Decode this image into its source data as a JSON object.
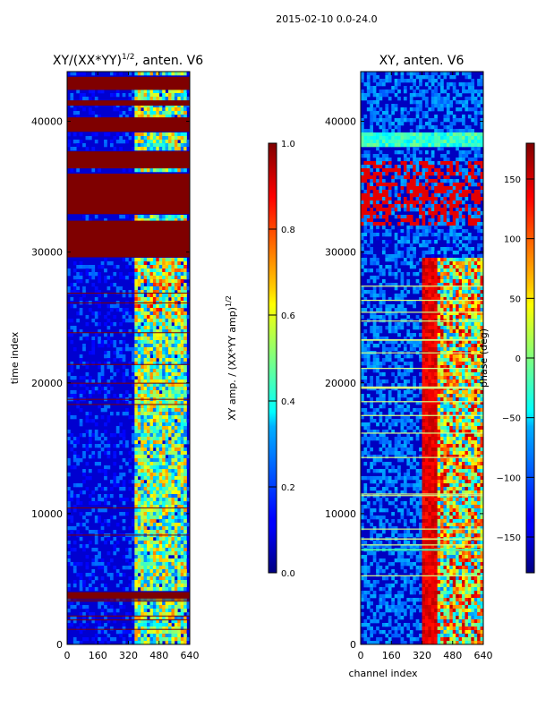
{
  "figure_title": "2015-02-10 0.0-24.0",
  "chart_data": [
    {
      "type": "heatmap",
      "title_prefix": "XY/(XX*YY)",
      "title_exp": "1/2",
      "title_suffix": ", anten. V6",
      "xlabel": "",
      "ylabel": "time index",
      "xlim": [
        0,
        640
      ],
      "ylim": [
        0,
        43800
      ],
      "xticks": [
        0,
        160,
        320,
        480,
        640
      ],
      "yticks": [
        0,
        10000,
        20000,
        30000,
        40000
      ],
      "colorbar": {
        "label": "XY amp. / (XX*YY amp)",
        "label_exp": "1/2",
        "range": [
          0.0,
          1.0
        ],
        "ticks": [
          "0.0",
          "0.2",
          "0.4",
          "0.6",
          "0.8",
          "1.0"
        ],
        "colormap": "jet"
      },
      "saturated_time_ranges": [
        [
          3500,
          4000
        ],
        [
          29600,
          32400
        ],
        [
          32900,
          36000
        ],
        [
          36400,
          37700
        ],
        [
          39200,
          40300
        ],
        [
          41200,
          41600
        ],
        [
          42400,
          43400
        ]
      ],
      "active_channel_range": [
        350,
        620
      ],
      "grid": false
    },
    {
      "type": "heatmap",
      "title": "XY, anten. V6",
      "xlabel": "channel index",
      "ylabel": "",
      "xlim": [
        0,
        640
      ],
      "ylim": [
        0,
        43800
      ],
      "xticks": [
        0,
        160,
        320,
        480,
        640
      ],
      "yticks": [
        0,
        10000,
        20000,
        30000,
        40000
      ],
      "colorbar": {
        "label": "phase (deg)",
        "range": [
          -180,
          180
        ],
        "ticks": [
          "−150",
          "−100",
          "−50",
          "0",
          "50",
          "100",
          "150"
        ],
        "colormap": "jet"
      },
      "phase_transition_channel": 400,
      "grid": false
    }
  ],
  "colors": {
    "saturated": "#7f0000",
    "background_low": "#00007f",
    "axis": "#000000"
  }
}
